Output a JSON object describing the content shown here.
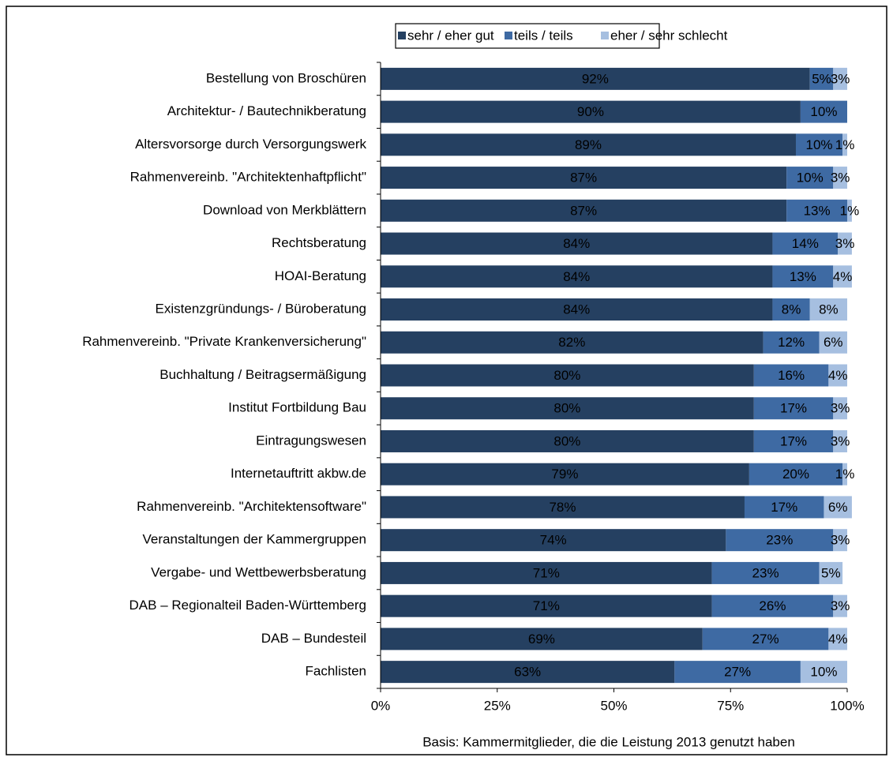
{
  "chart_data": {
    "type": "stacked-bar-horizontal",
    "categories": [
      "Bestellung von Broschüren",
      "Architektur- / Bautechnikberatung",
      "Altersvorsorge durch Versorgungswerk",
      "Rahmenvereinb. \"Architektenhaftpflicht\"",
      "Download von Merkblättern",
      "Rechtsberatung",
      "HOAI-Beratung",
      "Existenzgründungs- / Büroberatung",
      "Rahmenvereinb. \"Private Krankenversicherung\"",
      "Buchhaltung / Beitragsermäßigung",
      "Institut Fortbildung Bau",
      "Eintragungswesen",
      "Internetauftritt akbw.de",
      "Rahmenvereinb. \"Architektensoftware\"",
      "Veranstaltungen der Kammergruppen",
      "Vergabe- und Wettbewerbsberatung",
      "DAB – Regionalteil Baden-Württemberg",
      "DAB – Bundesteil",
      "Fachlisten"
    ],
    "series": [
      {
        "name": "sehr / eher gut",
        "color": "#254061",
        "label_color": "#ffffff",
        "values": [
          92,
          90,
          89,
          87,
          87,
          84,
          84,
          84,
          82,
          80,
          80,
          80,
          79,
          78,
          74,
          71,
          71,
          69,
          63
        ],
        "value_labels": [
          "92%",
          "90%",
          "89%",
          "87%",
          "87%",
          "84%",
          "84%",
          "84%",
          "82%",
          "80%",
          "80%",
          "80%",
          "79%",
          "78%",
          "74%",
          "71%",
          "71%",
          "69%",
          "63%"
        ]
      },
      {
        "name": "teils / teils",
        "color": "#3e6aa3",
        "label_color": "#ffffff",
        "values": [
          5,
          10,
          10,
          10,
          13,
          14,
          13,
          8,
          12,
          16,
          17,
          17,
          20,
          17,
          23,
          23,
          26,
          27,
          27
        ],
        "value_labels": [
          "5%",
          "10%",
          "10%",
          "10%",
          "13%",
          "14%",
          "13%",
          "8%",
          "12%",
          "16%",
          "17%",
          "17%",
          "20%",
          "17%",
          "23%",
          "23%",
          "26%",
          "27%",
          "27%"
        ]
      },
      {
        "name": "eher / sehr schlecht",
        "color": "#a6bfe0",
        "label_color": "#000000",
        "values": [
          3,
          null,
          1,
          3,
          1,
          3,
          4,
          8,
          6,
          4,
          3,
          3,
          1,
          6,
          3,
          5,
          3,
          4,
          10
        ],
        "value_labels": [
          "3%",
          null,
          "1%",
          "3%",
          "1%",
          "3%",
          "4%",
          "8%",
          "6%",
          "4%",
          "3%",
          "3%",
          "1%",
          "6%",
          "3%",
          "5%",
          "3%",
          "4%",
          "10%"
        ]
      }
    ],
    "xlim": [
      0,
      100
    ],
    "xticks": [
      {
        "value": 0,
        "label": "0%"
      },
      {
        "value": 25,
        "label": "25%"
      },
      {
        "value": 50,
        "label": "50%"
      },
      {
        "value": 75,
        "label": "75%"
      },
      {
        "value": 100,
        "label": "100%"
      }
    ],
    "legend": "top",
    "footnote": "Basis: Kammermitglieder, die die Leistung 2013 genutzt haben"
  }
}
